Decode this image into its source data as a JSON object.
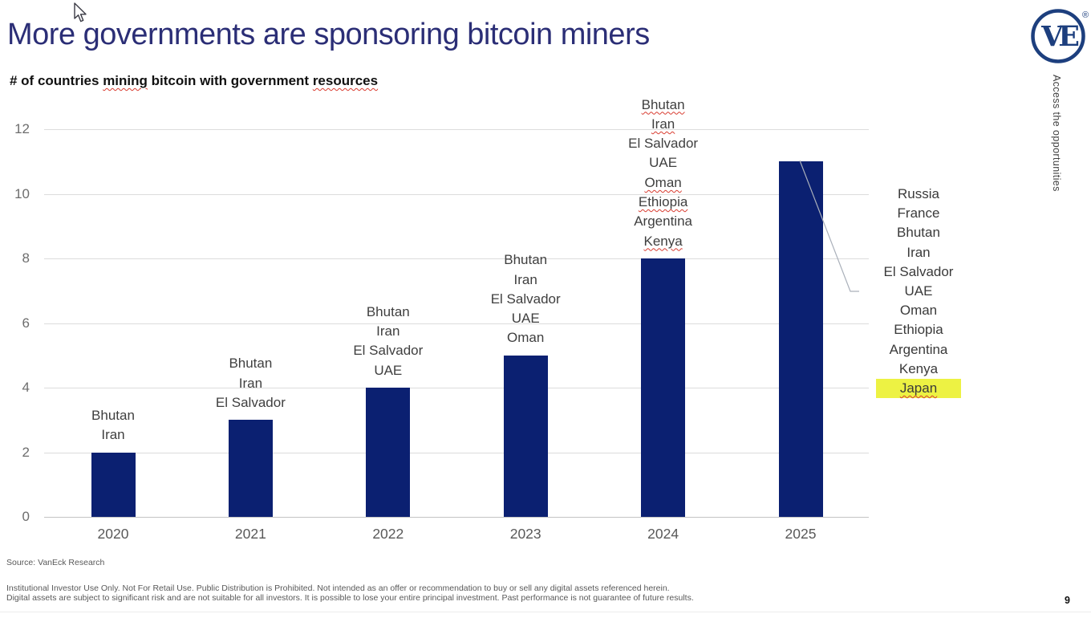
{
  "slide": {
    "title": "More governments are sponsoring bitcoin miners",
    "vertical_tagline": "Access the opportunities",
    "logo_text": "VE",
    "logo_registered_mark": "®",
    "source": "Source: VanEck Research",
    "disclaimer_line1": "Institutional Investor Use Only. Not For Retail Use. Public Distribution is Prohibited. Not intended as an offer or recommendation to buy or sell any digital assets referenced herein.",
    "disclaimer_line2": "Digital assets are subject to significant risk and are not suitable for all investors. It is possible to lose your entire principal investment. Past performance is not guarantee of future results.",
    "page_number": "9"
  },
  "icons": {
    "cursor": "arrow-pointer",
    "logo": "vaneck-ve-circle-badge"
  },
  "colors": {
    "bar_navy": "#0b2071",
    "title_navy": "#2b2e76",
    "logo_navy": "#1d3f7e",
    "highlight_yellow": "#edf243",
    "squiggle_red": "#d83b2f",
    "gridline_gray": "#dcdcdc",
    "axis_gray": "#c4c4c4",
    "leader_gray": "#aab0ba"
  },
  "chart_data": {
    "type": "bar",
    "title": "# of countries mining bitcoin with government resources",
    "title_misspelled_words": [
      "mining",
      "resources"
    ],
    "categories": [
      "2020",
      "2021",
      "2022",
      "2023",
      "2024",
      "2025"
    ],
    "values": [
      2,
      3,
      4,
      5,
      8,
      11
    ],
    "xlabel": "",
    "ylabel": "",
    "ylim": [
      0,
      12
    ],
    "yticks": [
      0,
      2,
      4,
      6,
      8,
      10,
      12
    ],
    "grid": true,
    "legend": false,
    "bar_color": "#0b2071",
    "bar_labels": [
      {
        "category": "2020",
        "lines": [
          {
            "text": "Bhutan"
          },
          {
            "text": "Iran"
          }
        ]
      },
      {
        "category": "2021",
        "lines": [
          {
            "text": "Bhutan"
          },
          {
            "text": "Iran"
          },
          {
            "text": "El Salvador"
          }
        ]
      },
      {
        "category": "2022",
        "lines": [
          {
            "text": "Bhutan"
          },
          {
            "text": "Iran"
          },
          {
            "text": "El Salvador"
          },
          {
            "text": "UAE"
          }
        ]
      },
      {
        "category": "2023",
        "lines": [
          {
            "text": "Bhutan"
          },
          {
            "text": "Iran"
          },
          {
            "text": "El Salvador"
          },
          {
            "text": "UAE"
          },
          {
            "text": "Oman"
          }
        ]
      },
      {
        "category": "2024",
        "lines": [
          {
            "text": "Bhutan",
            "squiggle": true
          },
          {
            "text": "Iran",
            "squiggle": true
          },
          {
            "text": "El Salvador"
          },
          {
            "text": "UAE"
          },
          {
            "text": "Oman",
            "squiggle": true
          },
          {
            "text": "Ethiopia",
            "squiggle": true
          },
          {
            "text": "Argentina"
          },
          {
            "text": "Kenya",
            "squiggle": true
          }
        ]
      },
      {
        "category": "2025",
        "lines": []
      }
    ],
    "callout_2025": {
      "items": [
        {
          "text": "Russia"
        },
        {
          "text": "France"
        },
        {
          "text": "Bhutan"
        },
        {
          "text": "Iran"
        },
        {
          "text": "El Salvador"
        },
        {
          "text": "UAE"
        },
        {
          "text": "Oman"
        },
        {
          "text": "Ethiopia"
        },
        {
          "text": "Argentina"
        },
        {
          "text": "Kenya"
        },
        {
          "text": "Japan",
          "squiggle": true,
          "highlight": true
        }
      ],
      "highlight_color": "#edf243"
    }
  }
}
